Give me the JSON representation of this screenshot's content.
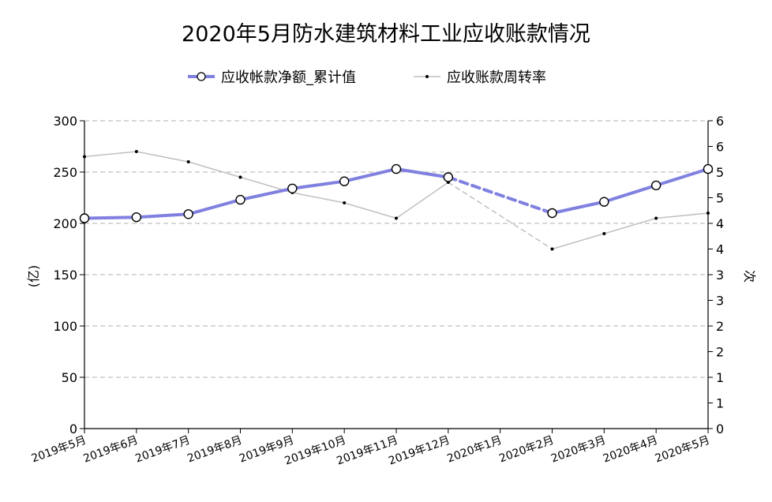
{
  "chart_data": {
    "type": "line",
    "title": "2020年5月防水建筑材料工业应收账款情况",
    "legend_position": "top-center",
    "grid": true,
    "categories": [
      "2019年5月",
      "2019年6月",
      "2019年7月",
      "2019年8月",
      "2019年9月",
      "2019年10月",
      "2019年11月",
      "2019年12月",
      "2020年1月",
      "2020年2月",
      "2020年3月",
      "2020年4月",
      "2020年5月"
    ],
    "y_left": {
      "label": "亿",
      "range": [
        0,
        300
      ],
      "ticks": [
        "0",
        "50",
        "100",
        "150",
        "200",
        "250",
        "300"
      ]
    },
    "y_right": {
      "label": "次",
      "range": [
        0,
        6
      ],
      "tick_values": [
        0,
        0.5,
        1,
        1.5,
        2,
        2.5,
        3,
        3.5,
        4,
        4.5,
        5,
        5.5,
        6
      ],
      "tick_labels": [
        "0",
        "1",
        "1",
        "2",
        "2",
        "3",
        "3",
        "4",
        "4",
        "5",
        "5",
        "6",
        "6"
      ]
    },
    "series": [
      {
        "name": "应收帐款净额_累计值",
        "axis": "left",
        "color": "#8080e0",
        "values": [
          205,
          206,
          209,
          223,
          234,
          241,
          253,
          245,
          null,
          210,
          221,
          237,
          253
        ]
      },
      {
        "name": "应收账款周转率",
        "axis": "right",
        "color": "#c0c0c0",
        "values": [
          5.3,
          5.4,
          5.2,
          4.9,
          4.6,
          4.4,
          4.1,
          4.8,
          null,
          3.5,
          3.8,
          4.1,
          4.2
        ]
      }
    ]
  }
}
